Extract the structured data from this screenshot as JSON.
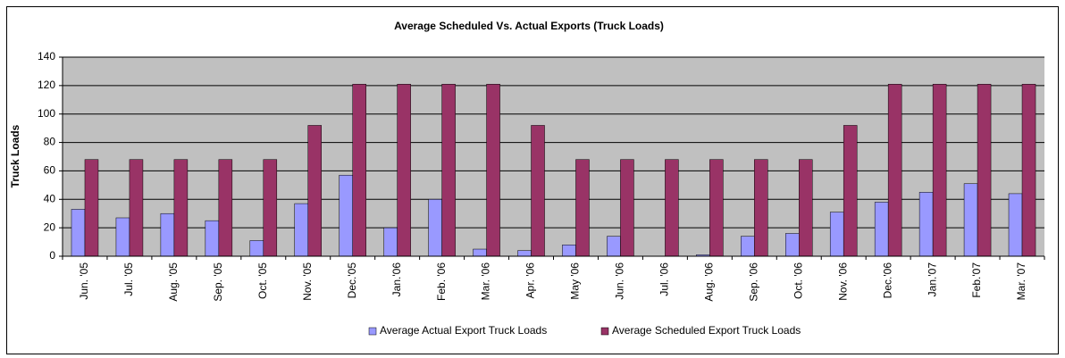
{
  "chart_data": {
    "type": "bar",
    "title": "Average Scheduled Vs. Actual Exports (Truck Loads)",
    "y_label": "Truck Loads",
    "categories": [
      "Jun. '05",
      "Jul. '05",
      "Aug. '05",
      "Sep. '05",
      "Oct. '05",
      "Nov. '05",
      "Dec.'05",
      "Jan.'06",
      "Feb. '06",
      "Mar. '06",
      "Apr. '06",
      "May '06",
      "Jun. '06",
      "Jul. '06",
      "Aug. '06",
      "Sep. '06",
      "Oct. '06",
      "Nov. '06",
      "Dec.'06",
      "Jan.'07",
      "Feb.'07",
      "Mar. '07"
    ],
    "series": [
      {
        "name": "Average Actual Export Truck Loads",
        "color": "#9999ff",
        "values": [
          33,
          27,
          30,
          25,
          11,
          37,
          57,
          20,
          40,
          5,
          4,
          8,
          14,
          0,
          1,
          14,
          16,
          31,
          38,
          45,
          51,
          44
        ]
      },
      {
        "name": "Average Scheduled Export Truck Loads",
        "color": "#993366",
        "values": [
          68,
          68,
          68,
          68,
          68,
          92,
          121,
          121,
          121,
          121,
          92,
          68,
          68,
          68,
          68,
          68,
          68,
          92,
          121,
          121,
          121,
          121
        ]
      }
    ],
    "ylim": [
      0,
      140
    ],
    "yticks": [
      0,
      20,
      40,
      60,
      80,
      100,
      120,
      140
    ],
    "grid": true,
    "plot_background": "#c0c0c0",
    "legend": "bottom"
  }
}
